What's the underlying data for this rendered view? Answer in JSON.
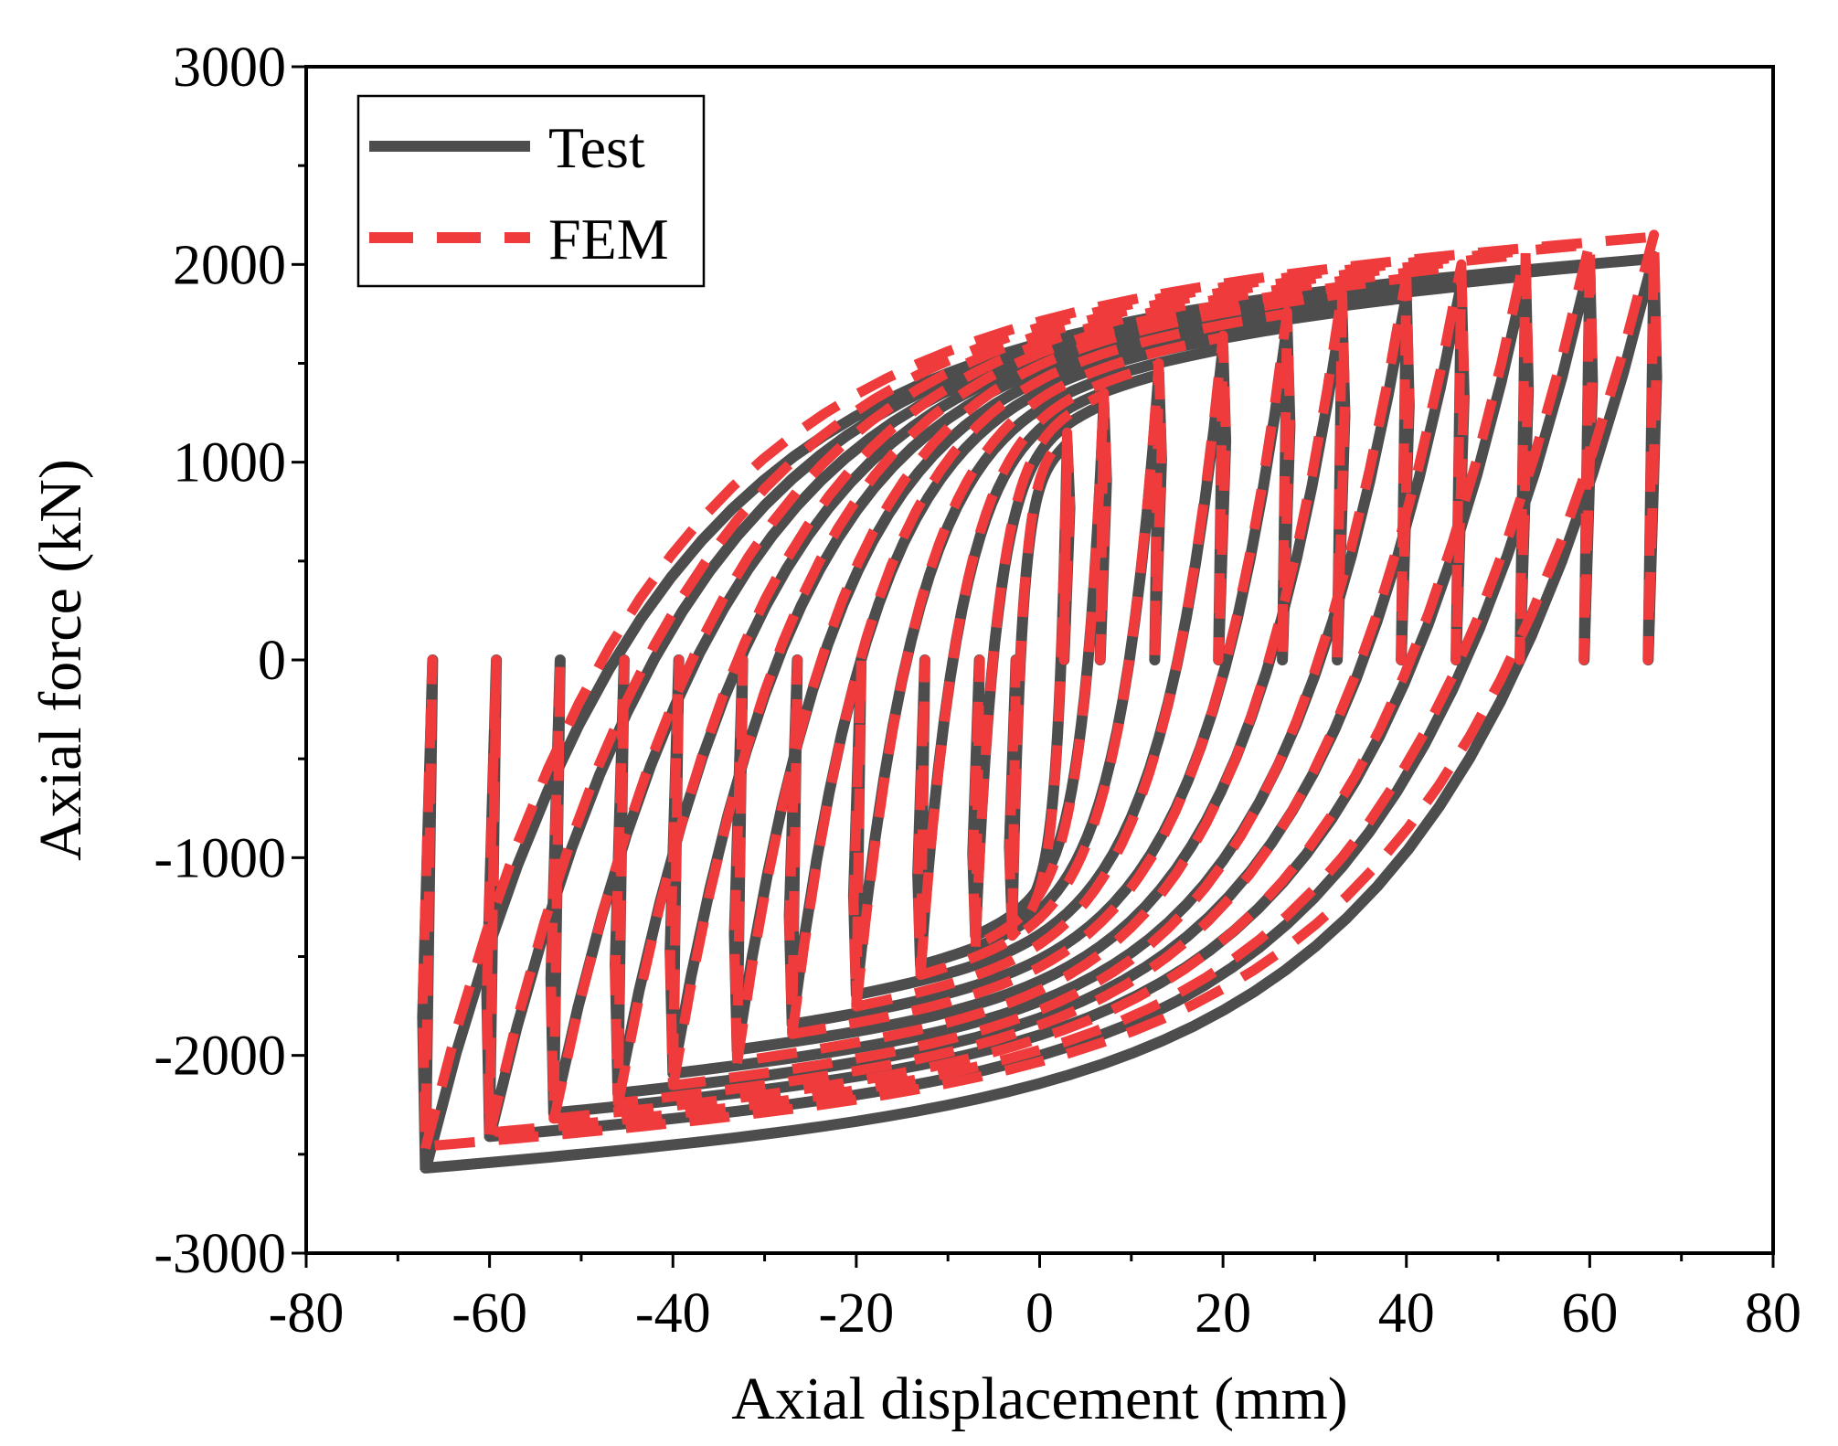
{
  "chart_data": {
    "type": "line",
    "title": "",
    "xlabel": "Axial displacement (mm)",
    "ylabel": "Axial force (kN)",
    "xlim": [
      -80,
      80
    ],
    "ylim": [
      -3000,
      3000
    ],
    "xticks": [
      -80,
      -60,
      -40,
      -20,
      0,
      20,
      40,
      60,
      80
    ],
    "yticks": [
      -3000,
      -2000,
      -1000,
      0,
      1000,
      2000,
      3000
    ],
    "xtick_labels": [
      "-80",
      "-60",
      "-40",
      "-20",
      "0",
      "20",
      "40",
      "60",
      "80"
    ],
    "ytick_labels": [
      "-3000",
      "-2000",
      "-1000",
      "0",
      "1000",
      "2000",
      "3000"
    ],
    "grid": false,
    "legend_position": "top-left",
    "series": [
      {
        "name": "Test",
        "color": "#4d4d4d",
        "style": "solid",
        "loops": [
          {
            "d": 3,
            "fmax": 1100,
            "fmin": -1350
          },
          {
            "d": 7,
            "fmax": 1300,
            "fmin": -1400
          },
          {
            "d": 13,
            "fmax": 1450,
            "fmin": -1550
          },
          {
            "d": 20,
            "fmax": 1580,
            "fmin": -1700
          },
          {
            "d": 27,
            "fmax": 1690,
            "fmin": -1850
          },
          {
            "d": 33,
            "fmax": 1770,
            "fmin": -1980
          },
          {
            "d": 40,
            "fmax": 1840,
            "fmin": -2100
          },
          {
            "d": 46,
            "fmax": 1900,
            "fmin": -2200
          },
          {
            "d": 53,
            "fmax": 1950,
            "fmin": -2300
          },
          {
            "d": 60,
            "fmax": 2000,
            "fmin": -2420
          },
          {
            "d": 67,
            "fmax": 2040,
            "fmin": -2580
          }
        ]
      },
      {
        "name": "FEM",
        "color": "#ef3b3b",
        "style": "dashed",
        "loops": [
          {
            "d": 3,
            "fmax": 1150,
            "fmin": -1400
          },
          {
            "d": 7,
            "fmax": 1350,
            "fmin": -1450
          },
          {
            "d": 13,
            "fmax": 1500,
            "fmin": -1600
          },
          {
            "d": 20,
            "fmax": 1640,
            "fmin": -1760
          },
          {
            "d": 27,
            "fmax": 1760,
            "fmin": -1900
          },
          {
            "d": 33,
            "fmax": 1860,
            "fmin": -2040
          },
          {
            "d": 40,
            "fmax": 1940,
            "fmin": -2160
          },
          {
            "d": 46,
            "fmax": 2000,
            "fmin": -2250
          },
          {
            "d": 53,
            "fmax": 2060,
            "fmin": -2330
          },
          {
            "d": 60,
            "fmax": 2110,
            "fmin": -2400
          },
          {
            "d": 67,
            "fmax": 2150,
            "fmin": -2470
          }
        ]
      }
    ]
  }
}
